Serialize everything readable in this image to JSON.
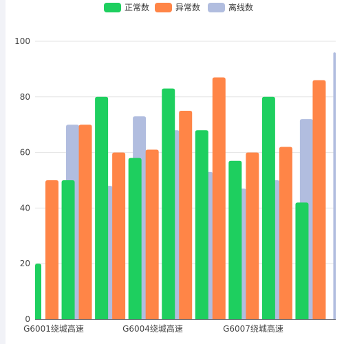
{
  "chart_data": {
    "type": "bar",
    "categories": [
      "G6001绕城高速",
      "",
      "",
      "G6004绕城高速",
      "",
      "",
      "G6007绕城高速",
      "",
      ""
    ],
    "x_tick_labels": [
      "G6001绕城高速",
      "G6004绕城高速",
      "G6007绕城高速"
    ],
    "series": [
      {
        "name": "正常数",
        "color": "#1ecf5f",
        "values": [
          20,
          50,
          80,
          58,
          83,
          68,
          57,
          80,
          42
        ]
      },
      {
        "name": "异常数",
        "color": "#ff8547",
        "values": [
          50,
          70,
          60,
          61,
          75,
          87,
          60,
          62,
          86
        ]
      },
      {
        "name": "离线数",
        "color": "#b1bddf",
        "values": [
          70,
          48,
          73,
          68,
          53,
          47,
          50,
          72,
          96
        ]
      }
    ],
    "y_ticks": [
      "0",
      "20",
      "40",
      "60",
      "80",
      "100"
    ],
    "ylim": [
      0,
      100
    ],
    "grid": true,
    "legend_position": "top-center"
  }
}
